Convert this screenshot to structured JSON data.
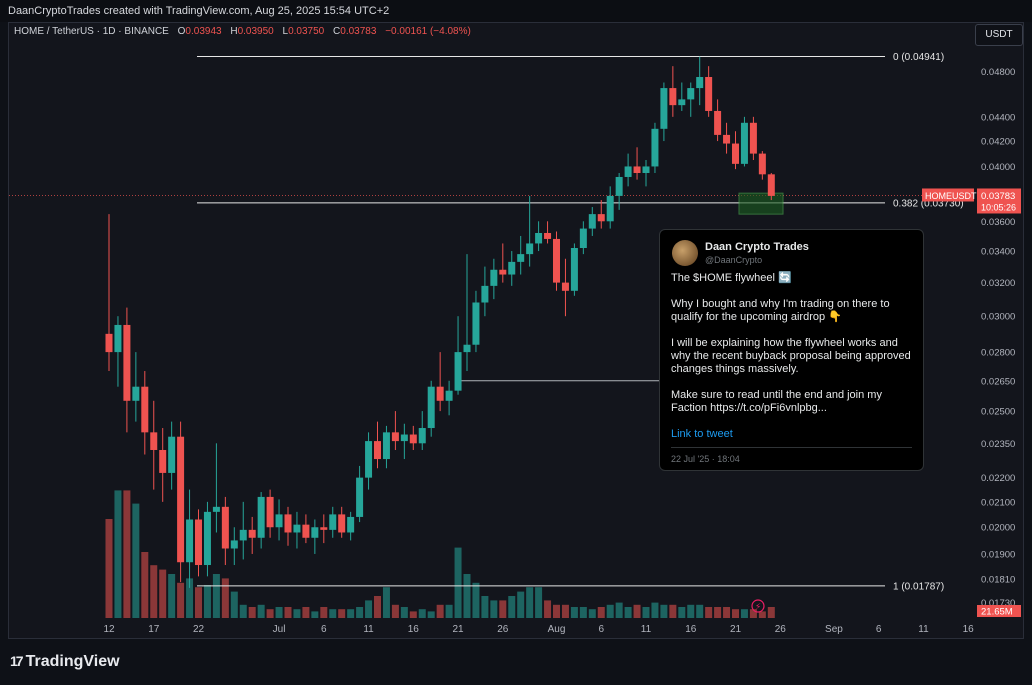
{
  "header": {
    "credit": "DaanCryptoTrades created with TradingView.com, Aug 25, 2025 15:54 UTC+2"
  },
  "symbol": {
    "name": "HOME / TetherUS · 1D · BINANCE",
    "o_label": "O",
    "o": "0.03943",
    "h_label": "H",
    "h": "0.03950",
    "l_label": "L",
    "l": "0.03750",
    "c_label": "C",
    "c": "0.03783",
    "change": "−0.00161 (−4.08%)"
  },
  "currency_button": "USDT",
  "footer": {
    "brand": "TradingView"
  },
  "colors": {
    "up": "#26a69a",
    "down": "#ef5350",
    "bg": "#13151c"
  },
  "tweet": {
    "name": "Daan Crypto Trades",
    "handle": "@DaanCrypto",
    "paragraphs": [
      "The $HOME flywheel 🔄",
      "Why I bought and why I'm trading on there to qualify for the upcoming airdrop 👇",
      "I will be explaining how the flywheel works and why the recent buyback proposal being approved changes things massively.",
      "Make sure to read until the end and join my Faction https://t.co/pFi6vnlpbg..."
    ],
    "link_label": "Link to tweet",
    "date": "22 Jul '25 · 18:04"
  },
  "chart_data": {
    "type": "candlestick",
    "symbol": "HOMEUSDT",
    "interval": "1D",
    "y_scale": "log",
    "ylim": [
      0.0168,
      0.051
    ],
    "price_ticks": [
      "0.04800",
      "0.04400",
      "0.04200",
      "0.04000",
      "0.03600",
      "0.03400",
      "0.03200",
      "0.03000",
      "0.02800",
      "0.02650",
      "0.02500",
      "0.02350",
      "0.02200",
      "0.02100",
      "0.02000",
      "0.01900",
      "0.01810",
      "0.01730"
    ],
    "x_ticks": [
      {
        "label": "12",
        "i": 0
      },
      {
        "label": "17",
        "i": 5
      },
      {
        "label": "22",
        "i": 10
      },
      {
        "label": "Jul",
        "i": 19
      },
      {
        "label": "6",
        "i": 24
      },
      {
        "label": "11",
        "i": 29
      },
      {
        "label": "16",
        "i": 34
      },
      {
        "label": "21",
        "i": 39
      },
      {
        "label": "26",
        "i": 44
      },
      {
        "label": "Aug",
        "i": 50
      },
      {
        "label": "6",
        "i": 55
      },
      {
        "label": "11",
        "i": 60
      },
      {
        "label": "16",
        "i": 65
      },
      {
        "label": "21",
        "i": 70
      },
      {
        "label": "26",
        "i": 75
      },
      {
        "label": "Sep",
        "i": 81
      },
      {
        "label": "6",
        "i": 86
      },
      {
        "label": "11",
        "i": 91
      },
      {
        "label": "16",
        "i": 96
      }
    ],
    "fib_levels": [
      {
        "label": "0 (0.04941)",
        "price": 0.04941
      },
      {
        "label": "0.382 (0.03730)",
        "price": 0.0373
      },
      {
        "label": "1 (0.01787)",
        "price": 0.01787
      }
    ],
    "horizontal_line": {
      "price": 0.0265
    },
    "last_price": {
      "symbol": "HOMEUSDT",
      "price": "0.03783",
      "countdown": "10:05:26"
    },
    "volume_label": "21.65M",
    "candles": [
      [
        0.029,
        0.0365,
        0.027,
        0.028
      ],
      [
        0.028,
        0.03,
        0.0262,
        0.0295
      ],
      [
        0.0295,
        0.0305,
        0.024,
        0.0255
      ],
      [
        0.0255,
        0.028,
        0.0245,
        0.0262
      ],
      [
        0.0262,
        0.027,
        0.023,
        0.024
      ],
      [
        0.024,
        0.0255,
        0.0215,
        0.0232
      ],
      [
        0.0232,
        0.0242,
        0.021,
        0.0222
      ],
      [
        0.0222,
        0.0245,
        0.0215,
        0.0238
      ],
      [
        0.0238,
        0.0245,
        0.018,
        0.0187
      ],
      [
        0.0187,
        0.0215,
        0.0178,
        0.0203
      ],
      [
        0.0203,
        0.0207,
        0.0182,
        0.0186
      ],
      [
        0.0186,
        0.021,
        0.0182,
        0.0206
      ],
      [
        0.0206,
        0.0235,
        0.0198,
        0.0208
      ],
      [
        0.0208,
        0.0212,
        0.0186,
        0.0192
      ],
      [
        0.0192,
        0.02,
        0.0186,
        0.0195
      ],
      [
        0.0195,
        0.021,
        0.0188,
        0.0199
      ],
      [
        0.0199,
        0.0204,
        0.019,
        0.0196
      ],
      [
        0.0196,
        0.0214,
        0.0192,
        0.0212
      ],
      [
        0.0212,
        0.0215,
        0.0196,
        0.02
      ],
      [
        0.02,
        0.0211,
        0.0195,
        0.0205
      ],
      [
        0.0205,
        0.0208,
        0.0193,
        0.0198
      ],
      [
        0.0198,
        0.0206,
        0.0192,
        0.0201
      ],
      [
        0.0201,
        0.0205,
        0.0194,
        0.0196
      ],
      [
        0.0196,
        0.0203,
        0.019,
        0.02
      ],
      [
        0.02,
        0.0205,
        0.0194,
        0.0199
      ],
      [
        0.0199,
        0.0208,
        0.0196,
        0.0205
      ],
      [
        0.0205,
        0.0208,
        0.0196,
        0.0198
      ],
      [
        0.0198,
        0.0206,
        0.0195,
        0.0204
      ],
      [
        0.0204,
        0.0225,
        0.0202,
        0.022
      ],
      [
        0.022,
        0.024,
        0.0215,
        0.0236
      ],
      [
        0.0236,
        0.0245,
        0.0224,
        0.0228
      ],
      [
        0.0228,
        0.0243,
        0.0224,
        0.024
      ],
      [
        0.024,
        0.025,
        0.0232,
        0.0236
      ],
      [
        0.0236,
        0.0244,
        0.0228,
        0.0239
      ],
      [
        0.0239,
        0.0243,
        0.0232,
        0.0235
      ],
      [
        0.0235,
        0.025,
        0.0232,
        0.0242
      ],
      [
        0.0242,
        0.0265,
        0.0238,
        0.0262
      ],
      [
        0.0262,
        0.028,
        0.025,
        0.0255
      ],
      [
        0.0255,
        0.0265,
        0.0248,
        0.026
      ],
      [
        0.026,
        0.03,
        0.0258,
        0.028
      ],
      [
        0.028,
        0.0338,
        0.027,
        0.0284
      ],
      [
        0.0284,
        0.0315,
        0.028,
        0.0308
      ],
      [
        0.0308,
        0.033,
        0.03,
        0.0318
      ],
      [
        0.0318,
        0.0335,
        0.031,
        0.0328
      ],
      [
        0.0328,
        0.0345,
        0.032,
        0.0325
      ],
      [
        0.0325,
        0.034,
        0.0318,
        0.0333
      ],
      [
        0.0333,
        0.035,
        0.0325,
        0.0338
      ],
      [
        0.0338,
        0.0378,
        0.033,
        0.0345
      ],
      [
        0.0345,
        0.036,
        0.034,
        0.0352
      ],
      [
        0.0352,
        0.036,
        0.0345,
        0.0348
      ],
      [
        0.0348,
        0.0353,
        0.0315,
        0.032
      ],
      [
        0.032,
        0.0335,
        0.03,
        0.0315
      ],
      [
        0.0315,
        0.0345,
        0.0312,
        0.0342
      ],
      [
        0.0342,
        0.036,
        0.0338,
        0.0355
      ],
      [
        0.0355,
        0.037,
        0.035,
        0.0365
      ],
      [
        0.0365,
        0.0375,
        0.0355,
        0.036
      ],
      [
        0.036,
        0.0385,
        0.0355,
        0.0378
      ],
      [
        0.0378,
        0.0395,
        0.0368,
        0.0392
      ],
      [
        0.0392,
        0.041,
        0.0385,
        0.04
      ],
      [
        0.04,
        0.0415,
        0.039,
        0.0395
      ],
      [
        0.0395,
        0.0405,
        0.0385,
        0.04
      ],
      [
        0.04,
        0.0435,
        0.0395,
        0.043
      ],
      [
        0.043,
        0.047,
        0.042,
        0.0465
      ],
      [
        0.0465,
        0.0485,
        0.044,
        0.045
      ],
      [
        0.045,
        0.047,
        0.0445,
        0.0455
      ],
      [
        0.0455,
        0.047,
        0.044,
        0.0465
      ],
      [
        0.0465,
        0.0494,
        0.045,
        0.0475
      ],
      [
        0.0475,
        0.0485,
        0.044,
        0.0445
      ],
      [
        0.0445,
        0.0455,
        0.042,
        0.0425
      ],
      [
        0.0425,
        0.0435,
        0.041,
        0.0418
      ],
      [
        0.0418,
        0.0428,
        0.0398,
        0.0402
      ],
      [
        0.0402,
        0.044,
        0.04,
        0.0435
      ],
      [
        0.0435,
        0.044,
        0.0405,
        0.041
      ],
      [
        0.041,
        0.0412,
        0.039,
        0.0394
      ],
      [
        0.0394,
        0.0395,
        0.0375,
        0.0378
      ]
    ],
    "volumes": [
      0.45,
      0.58,
      0.58,
      0.52,
      0.3,
      0.24,
      0.22,
      0.2,
      0.16,
      0.18,
      0.14,
      0.15,
      0.2,
      0.18,
      0.12,
      0.06,
      0.05,
      0.06,
      0.04,
      0.05,
      0.05,
      0.04,
      0.05,
      0.03,
      0.05,
      0.04,
      0.04,
      0.04,
      0.05,
      0.08,
      0.1,
      0.14,
      0.06,
      0.05,
      0.03,
      0.04,
      0.03,
      0.06,
      0.06,
      0.32,
      0.2,
      0.16,
      0.1,
      0.08,
      0.08,
      0.1,
      0.12,
      0.14,
      0.14,
      0.08,
      0.06,
      0.06,
      0.05,
      0.05,
      0.04,
      0.05,
      0.06,
      0.07,
      0.05,
      0.06,
      0.05,
      0.07,
      0.06,
      0.06,
      0.05,
      0.06,
      0.06,
      0.05,
      0.05,
      0.05,
      0.04,
      0.04,
      0.04,
      0.03,
      0.05
    ]
  }
}
